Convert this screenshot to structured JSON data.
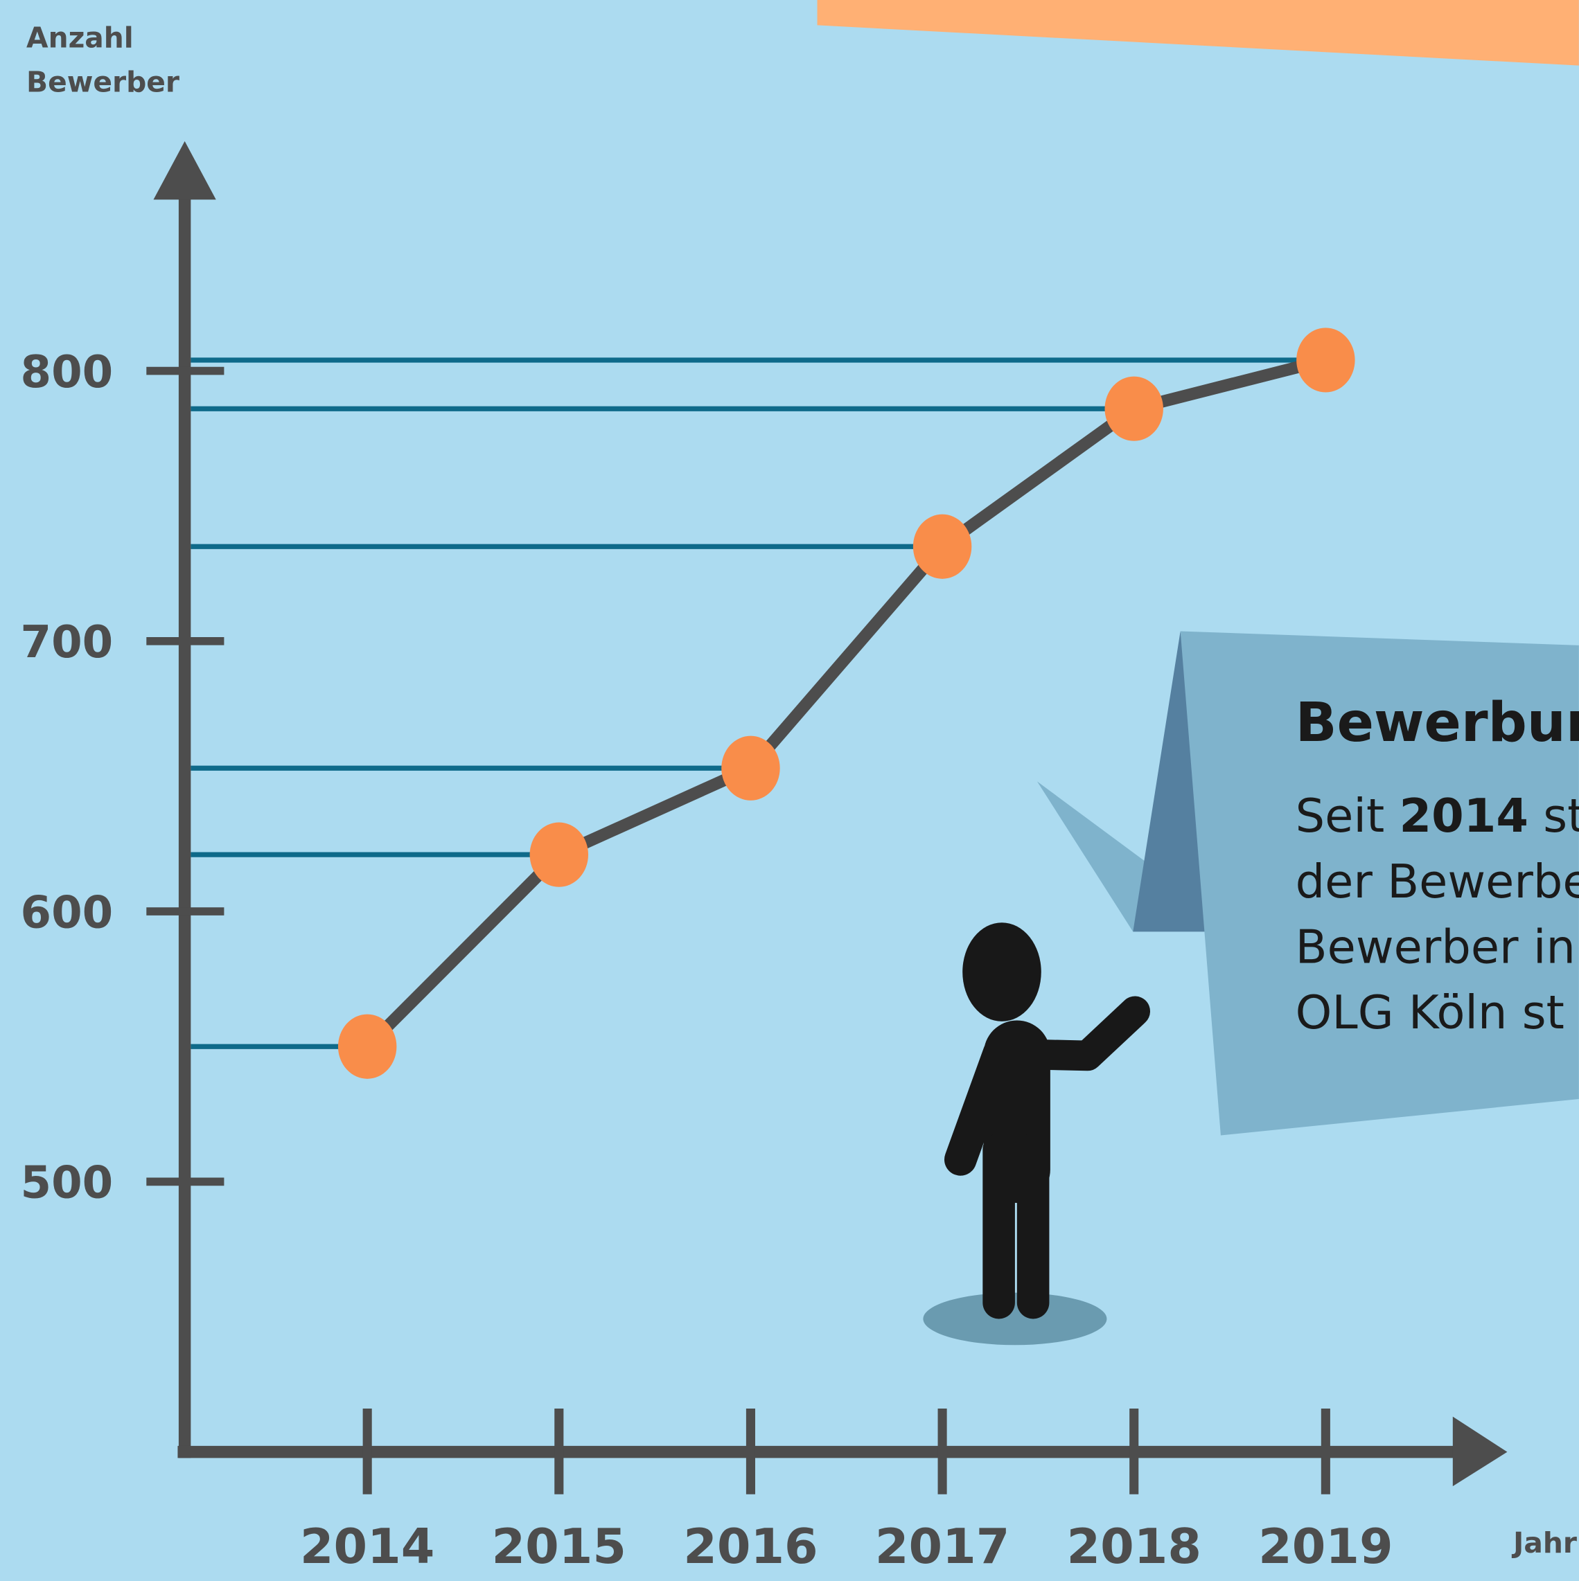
{
  "chart_data": {
    "type": "line",
    "y_label": "Anzahl Bewerber",
    "x_label": "Jahr",
    "categories": [
      "2014",
      "2015",
      "2016",
      "2017",
      "2018",
      "2019"
    ],
    "values": [
      550,
      621,
      653,
      735,
      786,
      804
    ],
    "color": "#4d4d4d",
    "marker_color": "#f98d4a",
    "drop_line_color": "#0e6a8a",
    "ylim": [
      400,
      885
    ],
    "yticks": [
      500,
      600,
      700,
      800
    ],
    "annotation": {
      "title": "Bewerbun",
      "lines": [
        [
          "Seit",
          "2014",
          "st"
        ],
        [
          "der Bewerbe"
        ],
        [
          "Bewerber in"
        ],
        [
          "OLG Köln st"
        ]
      ]
    }
  }
}
